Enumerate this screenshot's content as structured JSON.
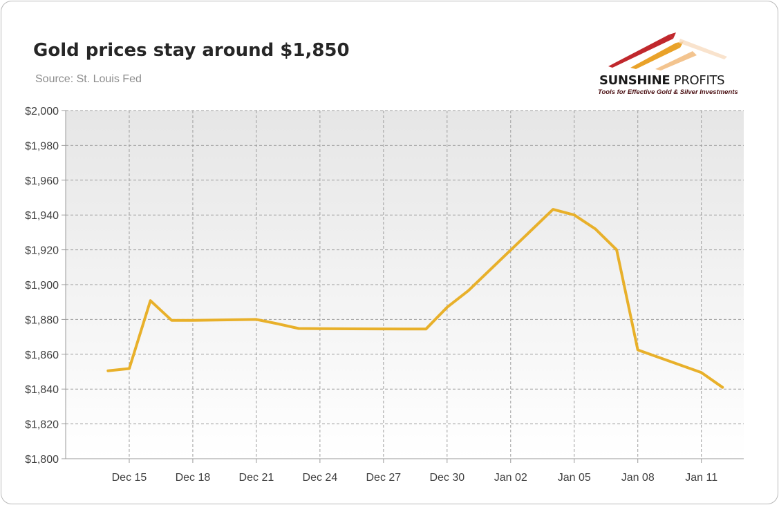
{
  "title": "Gold prices stay around $1,850",
  "subtitle": "Source: St. Louis Fed",
  "logo": {
    "name_bold": "SUNSHINE",
    "name_regular": " PROFITS",
    "tagline": "Tools for Effective Gold & Silver Investments",
    "icon": "rising-arrows-logo-icon",
    "colors": [
      "#c0282d",
      "#e9a229",
      "#f5c9a0"
    ]
  },
  "chart_data": {
    "type": "line",
    "title": "Gold prices stay around $1,850",
    "subtitle": "Source: St. Louis Fed",
    "xlabel": "",
    "ylabel": "",
    "ylim": [
      1800,
      2000
    ],
    "yticks": [
      1800,
      1820,
      1840,
      1860,
      1880,
      1900,
      1920,
      1940,
      1960,
      1980,
      2000
    ],
    "ytick_labels": [
      "$1,800",
      "$1,820",
      "$1,840",
      "$1,860",
      "$1,880",
      "$1,900",
      "$1,920",
      "$1,940",
      "$1,960",
      "$1,980",
      "$2,000"
    ],
    "xlim": [
      "2020-12-12",
      "2021-01-13"
    ],
    "xticks": [
      "2020-12-15",
      "2020-12-18",
      "2020-12-21",
      "2020-12-24",
      "2020-12-27",
      "2020-12-30",
      "2021-01-02",
      "2021-01-05",
      "2021-01-08",
      "2021-01-11"
    ],
    "xtick_labels": [
      "Dec 15",
      "Dec 18",
      "Dec 21",
      "Dec 24",
      "Dec 27",
      "Dec 30",
      "Jan 02",
      "Jan 05",
      "Jan 08",
      "Jan 11"
    ],
    "grid": true,
    "legend": "none",
    "series": [
      {
        "color": "#e8b02a",
        "x": [
          "2020-12-14",
          "2020-12-15",
          "2020-12-16",
          "2020-12-17",
          "2020-12-18",
          "2020-12-21",
          "2020-12-22",
          "2020-12-23",
          "2020-12-24",
          "2020-12-28",
          "2020-12-29",
          "2020-12-30",
          "2020-12-31",
          "2021-01-04",
          "2021-01-05",
          "2021-01-06",
          "2021-01-07",
          "2021-01-08",
          "2021-01-11",
          "2021-01-12"
        ],
        "y": [
          1850.5,
          1851.8,
          1890.8,
          1879.5,
          1879.5,
          1880,
          1877.5,
          1874.8,
          1874.7,
          1874.5,
          1874.5,
          1887,
          1896.5,
          1943.2,
          1940,
          1932,
          1920,
          1862.5,
          1849.5,
          1841
        ]
      }
    ]
  }
}
